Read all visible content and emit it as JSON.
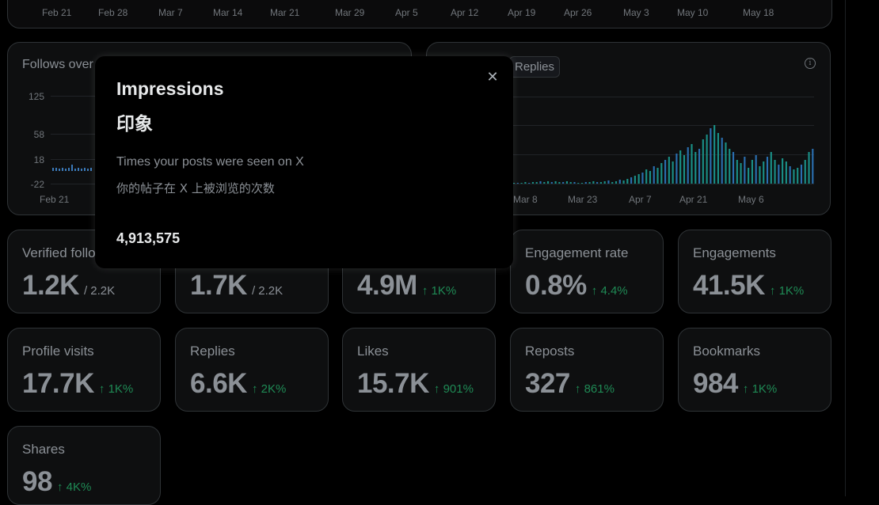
{
  "top_chart": {
    "x_labels": [
      "Feb 21",
      "Feb 28",
      "Mar 7",
      "Mar 14",
      "Mar 21",
      "Mar 29",
      "Apr 5",
      "Apr 12",
      "Apr 19",
      "Apr 26",
      "May 3",
      "May 10",
      "May 18"
    ]
  },
  "follows_card": {
    "title": "Follows over time",
    "y_ticks": [
      "125",
      "58",
      "18",
      "-22"
    ],
    "x_labels": [
      "Feb 21"
    ]
  },
  "replies_card": {
    "chip_label": "Replies",
    "info_icon": "info-icon",
    "x_labels": [
      "Mar 8",
      "Mar 23",
      "Apr 7",
      "Apr 21",
      "May 6"
    ]
  },
  "metrics_row1": [
    {
      "label": "Verified followers",
      "value": "1.2K",
      "sub": "/ 2.2K",
      "delta": ""
    },
    {
      "label": "",
      "value": "1.7K",
      "sub": "/ 2.2K",
      "delta": ""
    },
    {
      "label": "",
      "value": "4.9M",
      "sub": "",
      "delta": "↑ 1K%"
    },
    {
      "label": "Engagement rate",
      "value": "0.8%",
      "sub": "",
      "delta": "↑ 4.4%"
    },
    {
      "label": "Engagements",
      "value": "41.5K",
      "sub": "",
      "delta": "↑ 1K%"
    }
  ],
  "metrics_row2": [
    {
      "label": "Profile visits",
      "value": "17.7K",
      "delta": "↑ 1K%"
    },
    {
      "label": "Replies",
      "value": "6.6K",
      "delta": "↑ 2K%"
    },
    {
      "label": "Likes",
      "value": "15.7K",
      "delta": "↑ 901%"
    },
    {
      "label": "Reposts",
      "value": "327",
      "delta": "↑ 861%"
    },
    {
      "label": "Bookmarks",
      "value": "984",
      "delta": "↑ 1K%"
    }
  ],
  "metrics_row3": [
    {
      "label": "Shares",
      "value": "98",
      "delta": "↑ 4K%"
    }
  ],
  "popover": {
    "title": "Impressions",
    "title_zh": "印象",
    "description": "Times your posts were seen on X",
    "description_zh": "你的帖子在 X 上被浏览的次数",
    "value": "4,913,575",
    "close_icon": "close-icon"
  },
  "colors": {
    "accent_green": "#1f8a55",
    "bar_teal": "#1a8f86",
    "bar_blue": "#3b79b8"
  }
}
